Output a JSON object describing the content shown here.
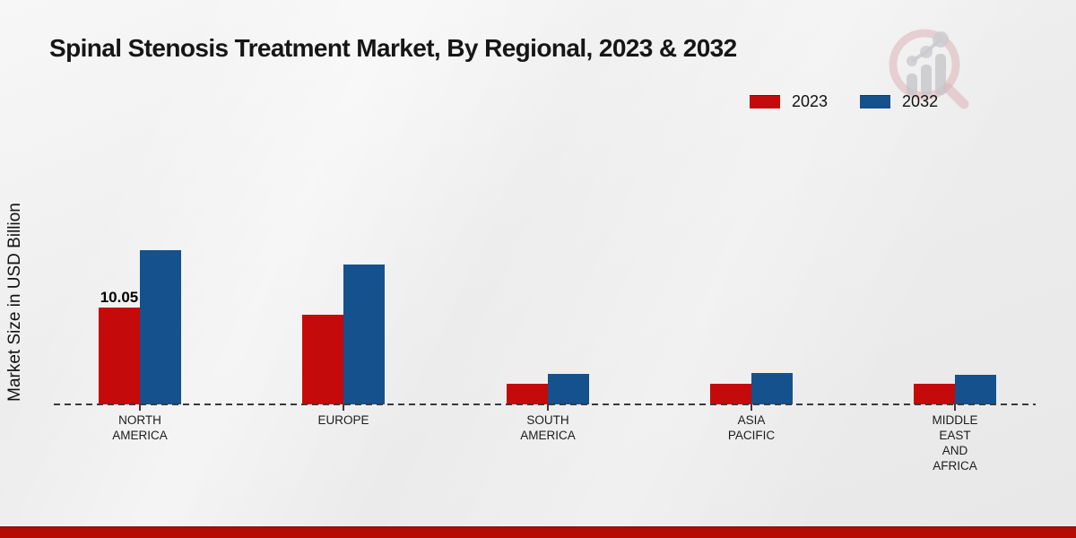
{
  "chart": {
    "title": "Spinal Stenosis Treatment Market, By Regional, 2023 & 2032",
    "ylabel": "Market Size in USD Billion",
    "legend": [
      {
        "label": "2023",
        "color": "#c40a0a"
      },
      {
        "label": "2032",
        "color": "#15518c"
      }
    ],
    "accent_footer_color": "#b50b05"
  },
  "chart_data": {
    "type": "bar",
    "title": "Spinal Stenosis Treatment Market, By Regional, 2023 & 2032",
    "xlabel": "",
    "ylabel": "Market Size in USD Billion",
    "categories": [
      "NORTH AMERICA",
      "EUROPE",
      "SOUTH AMERICA",
      "ASIA PACIFIC",
      "MIDDLE EAST AND AFRICA"
    ],
    "category_label_lines": [
      [
        "NORTH",
        "AMERICA"
      ],
      [
        "EUROPE"
      ],
      [
        "SOUTH",
        "AMERICA"
      ],
      [
        "ASIA",
        "PACIFIC"
      ],
      [
        "MIDDLE",
        "EAST",
        "AND",
        "AFRICA"
      ]
    ],
    "series": [
      {
        "name": "2023",
        "color": "#c40a0a",
        "values": [
          10.05,
          9.3,
          2.1,
          2.1,
          2.1
        ]
      },
      {
        "name": "2032",
        "color": "#15518c",
        "values": [
          16.0,
          14.5,
          3.2,
          3.3,
          3.1
        ]
      }
    ],
    "data_labels": [
      {
        "series": "2023",
        "category": "NORTH AMERICA",
        "text": "10.05"
      }
    ],
    "ylim": [
      0,
      18
    ],
    "grid": false,
    "legend_position": "top-right",
    "baseline_style": "dashed",
    "units": "USD Billion"
  }
}
